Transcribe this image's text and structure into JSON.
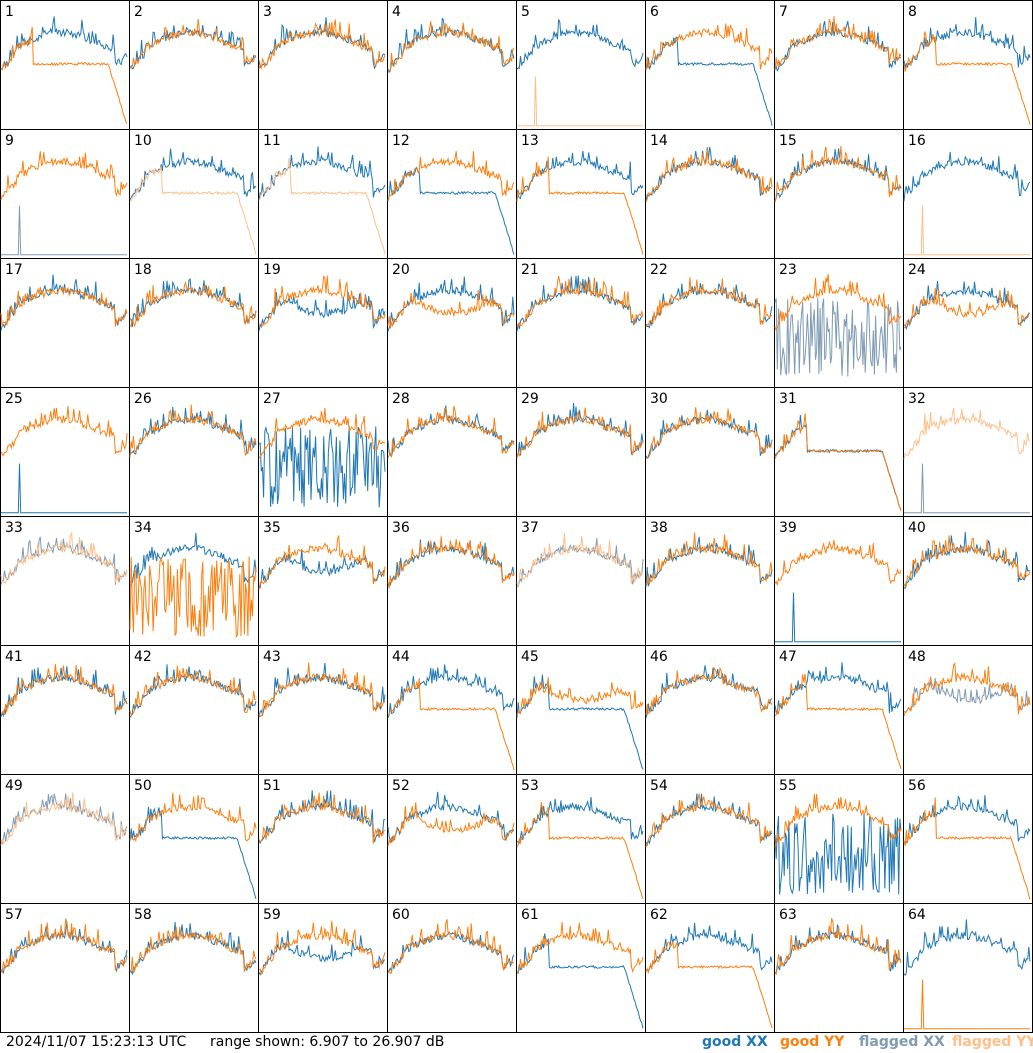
{
  "footer": {
    "timestamp": "2024/11/07 15:23:13 UTC",
    "range_text": "range shown: 6.907 to 26.907 dB"
  },
  "legend": {
    "good_xx": "good XX",
    "good_yy": "good YY",
    "flagged_xx": "flagged XX",
    "flagged_yy": "flagged YY"
  },
  "colors": {
    "good_xx": "#1f77b4",
    "good_yy": "#ff7f0e",
    "flagged_xx": "#7f9bb3",
    "flagged_yy": "#ffbf8a"
  },
  "chart_data": {
    "type": "line",
    "layout": "8x8 small multiples, one panel per tile",
    "y_range_db": [
      6.907,
      26.907
    ],
    "panels": [
      {
        "id": "1",
        "xx": "typical",
        "yy": "rolloff",
        "xx_flag": false,
        "yy_flag": false
      },
      {
        "id": "2",
        "xx": "typical",
        "yy": "typical",
        "xx_flag": false,
        "yy_flag": false
      },
      {
        "id": "3",
        "xx": "typical",
        "yy": "typical",
        "xx_flag": false,
        "yy_flag": false
      },
      {
        "id": "4",
        "xx": "typical",
        "yy": "typical",
        "xx_flag": false,
        "yy_flag": false
      },
      {
        "id": "5",
        "xx": "typical",
        "yy": "dead",
        "xx_flag": false,
        "yy_flag": true
      },
      {
        "id": "6",
        "xx": "rolloff",
        "yy": "typical",
        "xx_flag": false,
        "yy_flag": false
      },
      {
        "id": "7",
        "xx": "typical",
        "yy": "typical",
        "xx_flag": false,
        "yy_flag": false
      },
      {
        "id": "8",
        "xx": "typical",
        "yy": "rolloff",
        "xx_flag": false,
        "yy_flag": false
      },
      {
        "id": "9",
        "xx": "dead",
        "yy": "typical",
        "xx_flag": true,
        "yy_flag": false
      },
      {
        "id": "10",
        "xx": "typical",
        "yy": "rolloff",
        "xx_flag": false,
        "yy_flag": true
      },
      {
        "id": "11",
        "xx": "typical",
        "yy": "rolloff",
        "xx_flag": false,
        "yy_flag": true
      },
      {
        "id": "12",
        "xx": "rolloff",
        "yy": "typical",
        "xx_flag": false,
        "yy_flag": false
      },
      {
        "id": "13",
        "xx": "typical",
        "yy": "rolloff",
        "xx_flag": false,
        "yy_flag": false
      },
      {
        "id": "14",
        "xx": "typical",
        "yy": "typical",
        "xx_flag": false,
        "yy_flag": false
      },
      {
        "id": "15",
        "xx": "typical",
        "yy": "typical",
        "xx_flag": false,
        "yy_flag": false
      },
      {
        "id": "16",
        "xx": "typical",
        "yy": "dead",
        "xx_flag": false,
        "yy_flag": true
      },
      {
        "id": "17",
        "xx": "typical",
        "yy": "typical",
        "xx_flag": false,
        "yy_flag": false
      },
      {
        "id": "18",
        "xx": "typical",
        "yy": "typical",
        "xx_flag": false,
        "yy_flag": false
      },
      {
        "id": "19",
        "xx": "dip",
        "yy": "typical",
        "xx_flag": false,
        "yy_flag": false
      },
      {
        "id": "20",
        "xx": "typical",
        "yy": "dip",
        "xx_flag": false,
        "yy_flag": false
      },
      {
        "id": "21",
        "xx": "typical",
        "yy": "typical",
        "xx_flag": false,
        "yy_flag": false
      },
      {
        "id": "22",
        "xx": "typical",
        "yy": "typical",
        "xx_flag": false,
        "yy_flag": false
      },
      {
        "id": "23",
        "xx": "noisy",
        "yy": "typical",
        "xx_flag": true,
        "yy_flag": false
      },
      {
        "id": "24",
        "xx": "typical",
        "yy": "dip",
        "xx_flag": false,
        "yy_flag": false
      },
      {
        "id": "25",
        "xx": "dead",
        "yy": "typical",
        "xx_flag": false,
        "yy_flag": false
      },
      {
        "id": "26",
        "xx": "typical",
        "yy": "typical",
        "xx_flag": false,
        "yy_flag": false
      },
      {
        "id": "27",
        "xx": "noisy",
        "yy": "typical",
        "xx_flag": false,
        "yy_flag": false
      },
      {
        "id": "28",
        "xx": "typical",
        "yy": "typical",
        "xx_flag": false,
        "yy_flag": false
      },
      {
        "id": "29",
        "xx": "typical",
        "yy": "typical",
        "xx_flag": false,
        "yy_flag": false
      },
      {
        "id": "30",
        "xx": "typical",
        "yy": "typical",
        "xx_flag": false,
        "yy_flag": false
      },
      {
        "id": "31",
        "xx": "rolloff",
        "yy": "rolloff",
        "xx_flag": false,
        "yy_flag": false
      },
      {
        "id": "32",
        "xx": "dead",
        "yy": "typical",
        "xx_flag": true,
        "yy_flag": true
      },
      {
        "id": "33",
        "xx": "typical",
        "yy": "typical",
        "xx_flag": true,
        "yy_flag": true
      },
      {
        "id": "34",
        "xx": "typical",
        "yy": "noisy",
        "xx_flag": false,
        "yy_flag": false
      },
      {
        "id": "35",
        "xx": "dip",
        "yy": "typical",
        "xx_flag": false,
        "yy_flag": false
      },
      {
        "id": "36",
        "xx": "typical",
        "yy": "typical",
        "xx_flag": false,
        "yy_flag": false
      },
      {
        "id": "37",
        "xx": "typical",
        "yy": "typical",
        "xx_flag": true,
        "yy_flag": true
      },
      {
        "id": "38",
        "xx": "typical",
        "yy": "typical",
        "xx_flag": false,
        "yy_flag": false
      },
      {
        "id": "39",
        "xx": "dead",
        "yy": "typical",
        "xx_flag": false,
        "yy_flag": false
      },
      {
        "id": "40",
        "xx": "typical",
        "yy": "typical",
        "xx_flag": false,
        "yy_flag": false
      },
      {
        "id": "41",
        "xx": "typical",
        "yy": "typical",
        "xx_flag": false,
        "yy_flag": false
      },
      {
        "id": "42",
        "xx": "typical",
        "yy": "typical",
        "xx_flag": false,
        "yy_flag": false
      },
      {
        "id": "43",
        "xx": "typical",
        "yy": "typical",
        "xx_flag": false,
        "yy_flag": false
      },
      {
        "id": "44",
        "xx": "typical",
        "yy": "rolloff",
        "xx_flag": false,
        "yy_flag": false
      },
      {
        "id": "45",
        "xx": "rolloff",
        "yy": "dip",
        "xx_flag": false,
        "yy_flag": false
      },
      {
        "id": "46",
        "xx": "typical",
        "yy": "typical",
        "xx_flag": false,
        "yy_flag": false
      },
      {
        "id": "47",
        "xx": "typical",
        "yy": "rolloff",
        "xx_flag": false,
        "yy_flag": false
      },
      {
        "id": "48",
        "xx": "dip",
        "yy": "typical",
        "xx_flag": true,
        "yy_flag": false
      },
      {
        "id": "49",
        "xx": "typical",
        "yy": "typical",
        "xx_flag": true,
        "yy_flag": true
      },
      {
        "id": "50",
        "xx": "rolloff",
        "yy": "typical",
        "xx_flag": false,
        "yy_flag": false
      },
      {
        "id": "51",
        "xx": "typical",
        "yy": "typical",
        "xx_flag": false,
        "yy_flag": false
      },
      {
        "id": "52",
        "xx": "typical",
        "yy": "dip",
        "xx_flag": false,
        "yy_flag": false
      },
      {
        "id": "53",
        "xx": "typical",
        "yy": "rolloff",
        "xx_flag": false,
        "yy_flag": false
      },
      {
        "id": "54",
        "xx": "typical",
        "yy": "typical",
        "xx_flag": false,
        "yy_flag": false
      },
      {
        "id": "55",
        "xx": "noisy",
        "yy": "typical",
        "xx_flag": false,
        "yy_flag": false
      },
      {
        "id": "56",
        "xx": "typical",
        "yy": "rolloff",
        "xx_flag": false,
        "yy_flag": false
      },
      {
        "id": "57",
        "xx": "typical",
        "yy": "typical",
        "xx_flag": false,
        "yy_flag": false
      },
      {
        "id": "58",
        "xx": "typical",
        "yy": "typical",
        "xx_flag": false,
        "yy_flag": false
      },
      {
        "id": "59",
        "xx": "dip",
        "yy": "typical",
        "xx_flag": false,
        "yy_flag": false
      },
      {
        "id": "60",
        "xx": "typical",
        "yy": "typical",
        "xx_flag": false,
        "yy_flag": false
      },
      {
        "id": "61",
        "xx": "rolloff",
        "yy": "typical",
        "xx_flag": false,
        "yy_flag": false
      },
      {
        "id": "62",
        "xx": "typical",
        "yy": "rolloff",
        "xx_flag": false,
        "yy_flag": false
      },
      {
        "id": "63",
        "xx": "typical",
        "yy": "typical",
        "xx_flag": false,
        "yy_flag": false
      },
      {
        "id": "64",
        "xx": "typical",
        "yy": "dead",
        "xx_flag": false,
        "yy_flag": false
      }
    ]
  }
}
